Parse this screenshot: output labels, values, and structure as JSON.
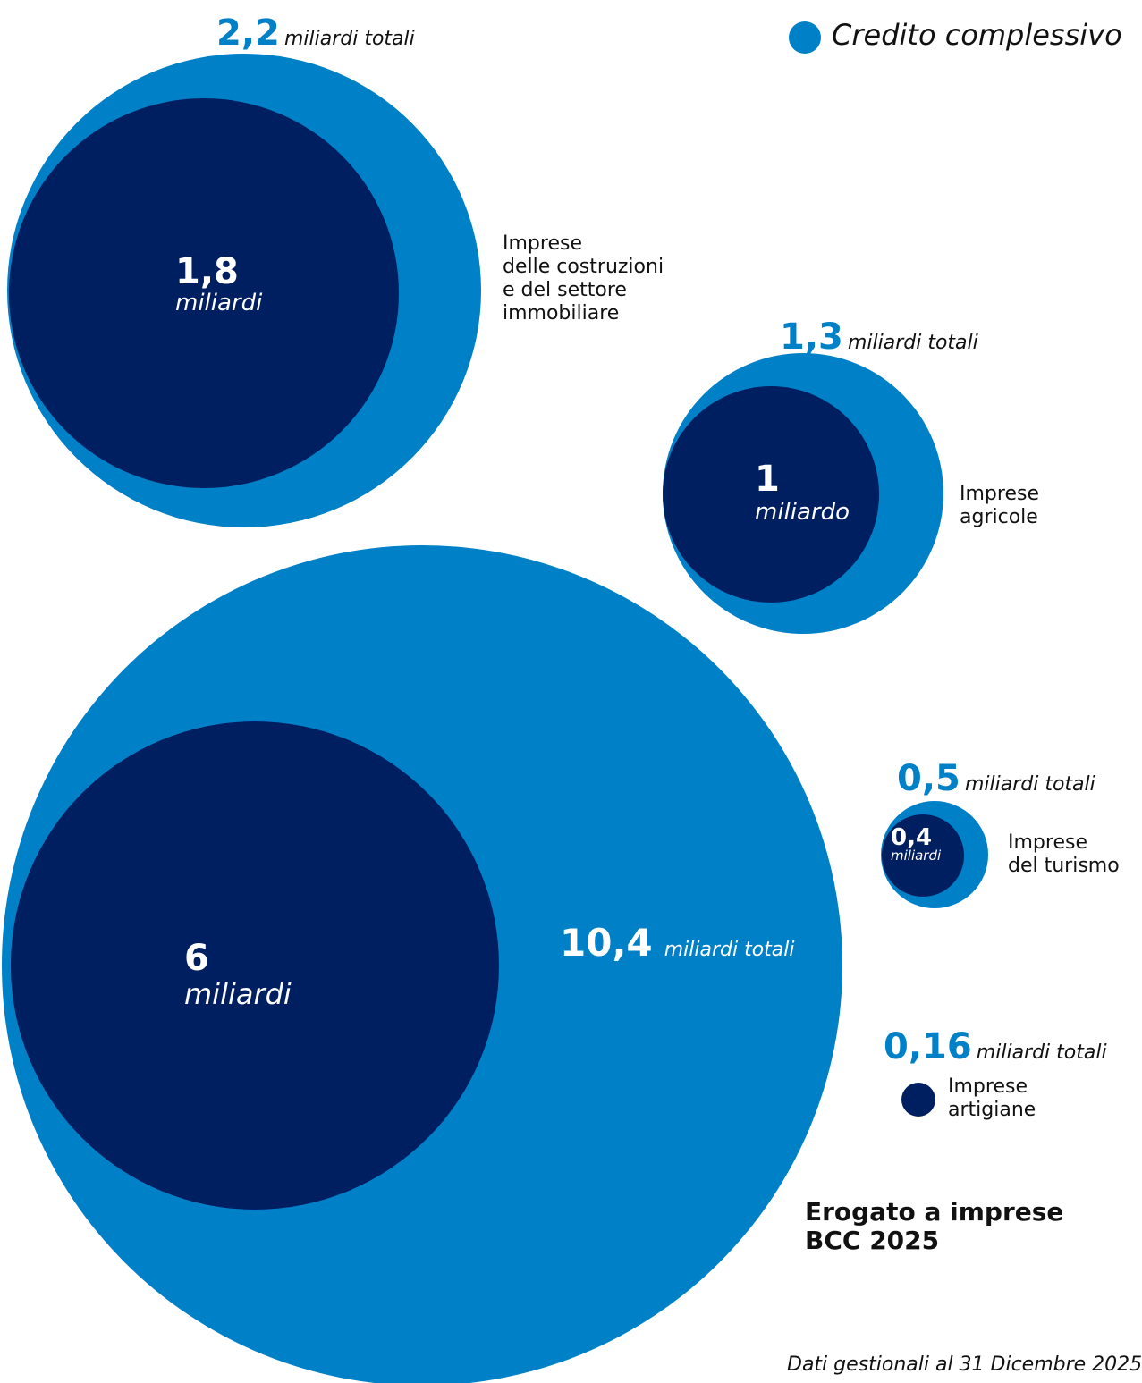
{
  "legend": {
    "label": "Credito complessivo",
    "color": "#0080C6"
  },
  "colors": {
    "total": "#0080C6",
    "inner": "#001F60"
  },
  "footer": {
    "summary_line1": "Erogato a imprese",
    "summary_line2": "BCC 2025",
    "source": "Dati gestionali  al 31 Dicembre 2025"
  },
  "chart_data": {
    "type": "bubble",
    "unit": "miliardi",
    "series": [
      {
        "name": "Credito complessivo",
        "color": "#0080C6"
      }
    ],
    "categories": [
      {
        "label": "Imprese\ndelle costruzioni\ne del settore\nimmobiliare",
        "total": 2.2,
        "total_text": "2,2",
        "total_unit": "miliardi totali",
        "value": 1.8,
        "value_text": "1,8",
        "value_unit": "miliardi"
      },
      {
        "label": "Imprese\nagricole",
        "total": 1.3,
        "total_text": "1,3",
        "total_unit": "miliardi totali",
        "value": 1.0,
        "value_text": "1",
        "value_unit": "miliardo"
      },
      {
        "label": "",
        "total": 10.4,
        "total_text": "10,4",
        "total_unit": "miliardi totali",
        "value": 6.0,
        "value_text": "6",
        "value_unit": "miliardi"
      },
      {
        "label": "Imprese\ndel turismo",
        "total": 0.5,
        "total_text": "0,5",
        "total_unit": "miliardi totali",
        "value": 0.4,
        "value_text": "0,4",
        "value_unit": "miliardi"
      },
      {
        "label": "Imprese\nartigiane",
        "total": 0.16,
        "total_text": "0,16",
        "total_unit": "miliardi totali",
        "value": null
      }
    ]
  }
}
